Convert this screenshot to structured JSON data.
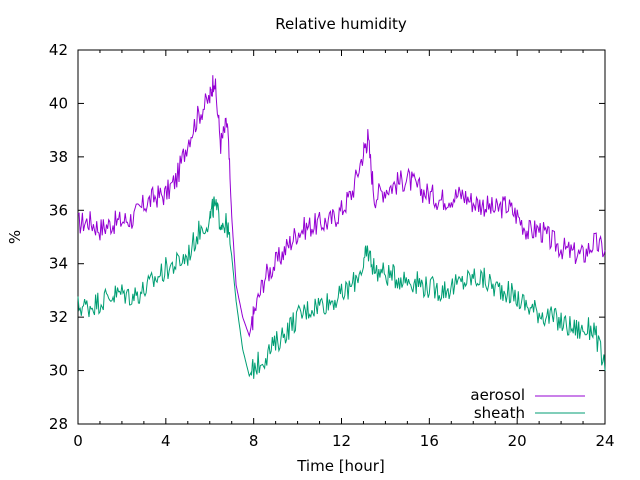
{
  "chart_data": {
    "type": "line",
    "title": "Relative humidity",
    "xlabel": "Time [hour]",
    "ylabel": "%",
    "xlim": [
      0,
      24
    ],
    "ylim": [
      28,
      42
    ],
    "x_ticks": [
      "0",
      "4",
      "8",
      "12",
      "16",
      "20",
      "24"
    ],
    "y_ticks": [
      "28",
      "30",
      "32",
      "34",
      "36",
      "38",
      "40",
      "42"
    ],
    "grid": false,
    "legend_position": "bottom-right",
    "series": [
      {
        "name": "aerosol",
        "color": "#9400d3",
        "x": [
          0,
          0.5,
          1,
          1.5,
          2,
          2.5,
          3,
          3.5,
          4,
          4.5,
          5,
          5.5,
          6,
          6.2,
          6.5,
          6.8,
          7,
          7.2,
          7.5,
          7.8,
          8,
          8.5,
          9,
          9.5,
          10,
          10.5,
          11,
          11.5,
          12,
          12.5,
          13,
          13.2,
          13.5,
          14,
          14.5,
          15,
          15.5,
          16,
          16.5,
          17,
          17.5,
          18,
          18.5,
          19,
          19.5,
          20,
          20.5,
          21,
          21.5,
          22,
          22.5,
          23,
          23.5,
          24
        ],
        "y": [
          35.5,
          35.6,
          35.3,
          35.5,
          35.6,
          35.7,
          36.2,
          36.5,
          36.6,
          37.2,
          38.6,
          39.6,
          40.2,
          41.0,
          38.5,
          39.3,
          35.8,
          33.2,
          32.0,
          31.3,
          32.1,
          33.5,
          34.0,
          34.6,
          35.2,
          35.4,
          35.5,
          35.6,
          36.0,
          36.7,
          38.2,
          38.7,
          36.5,
          36.8,
          37.0,
          37.2,
          36.8,
          36.6,
          36.4,
          36.5,
          36.6,
          36.3,
          36.2,
          36.0,
          36.2,
          35.8,
          35.2,
          35.3,
          34.9,
          34.6,
          34.4,
          34.3,
          34.8,
          34.5
        ]
      },
      {
        "name": "sheath",
        "color": "#009e73",
        "x": [
          0,
          0.5,
          1,
          1.5,
          2,
          2.5,
          3,
          3.5,
          4,
          4.5,
          5,
          5.5,
          6,
          6.2,
          6.5,
          6.8,
          7,
          7.2,
          7.5,
          7.8,
          8,
          8.5,
          9,
          9.5,
          10,
          10.5,
          11,
          11.5,
          12,
          12.5,
          13,
          13.2,
          13.5,
          14,
          14.5,
          15,
          15.5,
          16,
          16.5,
          17,
          17.5,
          18,
          18.5,
          19,
          19.5,
          20,
          20.5,
          21,
          21.5,
          22,
          22.5,
          23,
          23.5,
          24
        ],
        "y": [
          32.4,
          32.4,
          32.6,
          32.8,
          32.9,
          32.8,
          33.0,
          33.4,
          33.8,
          34.0,
          34.3,
          35.2,
          35.7,
          36.2,
          35.6,
          35.4,
          34.3,
          32.6,
          30.8,
          29.8,
          30.1,
          30.5,
          31.0,
          31.5,
          32.0,
          32.3,
          32.5,
          32.6,
          32.8,
          33.2,
          34.0,
          34.5,
          33.8,
          33.6,
          33.5,
          33.4,
          33.3,
          33.1,
          33.0,
          33.1,
          33.3,
          33.5,
          33.4,
          33.1,
          33.0,
          32.7,
          32.4,
          32.2,
          32.0,
          31.8,
          31.6,
          31.5,
          31.6,
          30.0
        ]
      }
    ]
  }
}
